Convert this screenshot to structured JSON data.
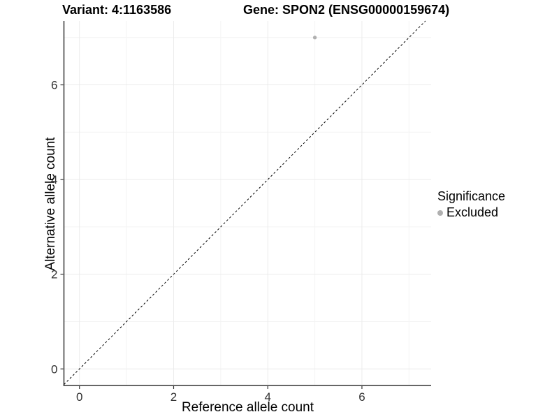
{
  "chart_data": {
    "type": "scatter",
    "title_variant": "Variant: 4:1163586",
    "title_gene": "Gene: SPON2 (ENSG00000159674)",
    "xlabel": "Reference allele count",
    "ylabel": "Alternative allele count",
    "xlim": [
      -0.33,
      7.47
    ],
    "ylim": [
      -0.35,
      7.35
    ],
    "xticks": [
      0,
      2,
      4,
      6
    ],
    "yticks": [
      0,
      2,
      4,
      6
    ],
    "xminor": [
      1,
      3,
      5,
      7
    ],
    "yminor": [
      1,
      3,
      5,
      7
    ],
    "grid": true,
    "series": [
      {
        "name": "Excluded",
        "color": "#b0b0b0",
        "points": [
          {
            "x": 5,
            "y": 7
          }
        ]
      }
    ],
    "reference_line": {
      "type": "identity",
      "slope": 1,
      "intercept": 0,
      "dashed": true,
      "color": "#000000"
    },
    "legend": {
      "title": "Significance",
      "position": "right",
      "items": [
        {
          "label": "Excluded",
          "color": "#b0b0b0"
        }
      ]
    }
  },
  "colors": {
    "background": "#ffffff",
    "grid_major": "#ebebeb",
    "grid_minor": "#f4f4f4",
    "axis_line": "#333333",
    "tick_label": "#333333",
    "point": "#b0b0b0"
  }
}
